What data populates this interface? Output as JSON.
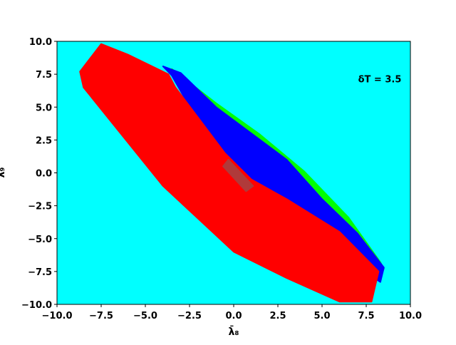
{
  "chart_data": {
    "type": "scatter",
    "x_label": "λ̄₈",
    "y_label": "λ̄₉",
    "annotation": "δT = 3.5",
    "background": "#00ffff",
    "xlim": [
      -10,
      10
    ],
    "ylim": [
      -10,
      10
    ],
    "xticks": [
      {
        "value": -10,
        "label": "−10.0"
      },
      {
        "value": -7.5,
        "label": "−7.5"
      },
      {
        "value": -5,
        "label": "−5.0"
      },
      {
        "value": -2.5,
        "label": "−2.5"
      },
      {
        "value": 0,
        "label": "0.0"
      },
      {
        "value": 2.5,
        "label": "2.5"
      },
      {
        "value": 5,
        "label": "5.0"
      },
      {
        "value": 7.5,
        "label": "7.5"
      },
      {
        "value": 10,
        "label": "10.0"
      }
    ],
    "yticks": [
      {
        "value": -10,
        "label": "−10.0"
      },
      {
        "value": -7.5,
        "label": "−7.5"
      },
      {
        "value": -5,
        "label": "−5.0"
      },
      {
        "value": -2.5,
        "label": "−2.5"
      },
      {
        "value": 0,
        "label": "0.0"
      },
      {
        "value": 2.5,
        "label": "2.5"
      },
      {
        "value": 5,
        "label": "5.0"
      },
      {
        "value": 7.5,
        "label": "7.5"
      },
      {
        "value": 10,
        "label": "10.0"
      }
    ],
    "series": [
      {
        "color": "#00ff00",
        "x": [
          -3.5,
          -1,
          1.5,
          4,
          6.5,
          8.3,
          8.5,
          6.8,
          4,
          1.5,
          -1,
          -3.5
        ],
        "values": [
          7.9,
          5.3,
          2.9,
          0.1,
          -3.4,
          -6.8,
          -7.3,
          -4.6,
          -0.7,
          2.3,
          4.8,
          7.4
        ]
      },
      {
        "color": "#0000ff",
        "x": [
          -4,
          -3,
          -1,
          1,
          3,
          5,
          7,
          8.5,
          8.3,
          7.5,
          5,
          2,
          0.5,
          -1,
          -3.5
        ],
        "values": [
          8.1,
          7.6,
          5,
          3,
          1,
          -2,
          -4.6,
          -7.2,
          -8.3,
          -7.6,
          -5,
          -2,
          -0.5,
          1.5,
          7.4
        ]
      },
      {
        "color": "#ff0000",
        "x": [
          -8.7,
          -7.5,
          -6,
          -3.7,
          -3.3,
          -0.5,
          1,
          3,
          6,
          8.2,
          7.8,
          6,
          3,
          0,
          -2,
          -4,
          -5.5,
          -7,
          -8.5
        ],
        "values": [
          7.7,
          9.8,
          9,
          7.5,
          6.5,
          1.5,
          -0.5,
          -2,
          -4.5,
          -7.5,
          -9.8,
          -9.8,
          -8,
          -6,
          -3.5,
          -1,
          1.5,
          4,
          6.5
        ]
      },
      {
        "color": "#b03a3a",
        "x": [
          -0.3,
          1.1,
          0.7,
          -0.6
        ],
        "values": [
          1.0,
          -1.0,
          -1.4,
          0.5
        ]
      }
    ]
  }
}
